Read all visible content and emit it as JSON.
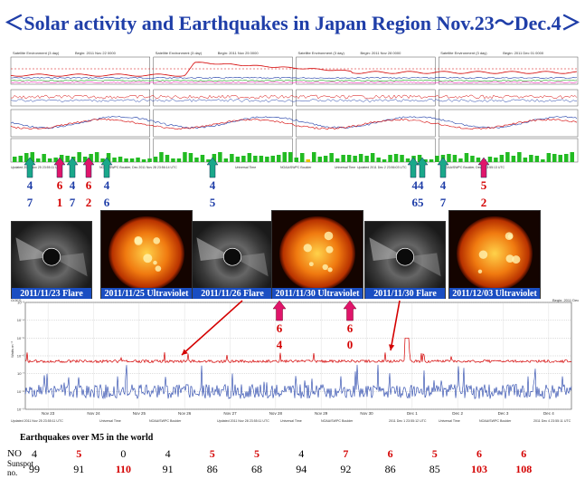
{
  "title": "＜Solar activity and Earthquakes  in Japan Region Nov.23～Dec.4＞",
  "top_chart": {
    "panel_titles": [
      "Satellite Environment (3 day)",
      "Satellite Environment (3 day)",
      "Satellite Environment (3 day)",
      "Satellite Environment (3 day)"
    ],
    "panel_begin": [
      "Begin: 2011 Nov 22 0000",
      "Begin: 2011 Nov 25 0000",
      "Begin: 2011 Nov 28 0000",
      "Begin: 2011 Dec 01 0000"
    ],
    "updated": [
      "Updated 2011 Nov 25 23:55:11 UTC",
      "NOAA/SWPC Boulder, Dec 2011 Nov 28 23:56:14 UTC",
      "Universal Time",
      "NOAA/SWPC Boulder",
      "Universal Time",
      "Updated 2011 Dec 2 23:56:03 UTC",
      "NOAA/SWPC Boulder, Dec 4 23:55:13 UTC"
    ]
  },
  "markers": {
    "items": [
      {
        "top": "4",
        "bottom": "7",
        "top_color": "blue",
        "bottom_color": "blue"
      },
      {
        "top": "6",
        "bottom": "1",
        "top_color": "red",
        "bottom_color": "red"
      },
      {
        "top": "4",
        "bottom": "7",
        "top_color": "blue",
        "bottom_color": "blue"
      },
      {
        "top": "6",
        "bottom": "2",
        "top_color": "red",
        "bottom_color": "red"
      },
      {
        "top": "4",
        "bottom": "6",
        "top_color": "blue",
        "bottom_color": "blue"
      },
      {
        "top": "4",
        "bottom": "5",
        "top_color": "blue",
        "bottom_color": "blue"
      },
      {
        "top": "44",
        "bottom": "65",
        "top_color": "blue",
        "bottom_color": "blue"
      },
      {
        "top": "4",
        "bottom": "7",
        "top_color": "blue",
        "bottom_color": "blue"
      },
      {
        "top": "5",
        "bottom": "2",
        "top_color": "red",
        "bottom_color": "red"
      }
    ],
    "mid": [
      {
        "top": "6",
        "bottom": "4"
      },
      {
        "top": "6",
        "bottom": "0"
      }
    ]
  },
  "images": [
    {
      "caption": "2011/11/23 Flare",
      "kind": "coronagraph"
    },
    {
      "caption": "2011/11/25 Ultraviolet",
      "kind": "sun"
    },
    {
      "caption": "2011/11/26 Flare",
      "kind": "coronagraph"
    },
    {
      "caption": "2011/11/30 Ultraviolet",
      "kind": "sun"
    },
    {
      "caption": "2011/11/30 Flare",
      "kind": "coronagraph"
    },
    {
      "caption": "2011/12/03 Ultraviolet",
      "kind": "sun"
    }
  ],
  "lower_chart": {
    "title": "GOES",
    "begin": "Begin:  2011 Dec 2",
    "ylabel": "Watts m⁻²",
    "x_ticks": [
      "Nov 23",
      "Nov 24",
      "Nov 25",
      "Nov 26",
      "Nov 27",
      "Nov 28",
      "Nov 29",
      "Nov 30",
      "Dec 1",
      "Dec 2",
      "Dec 3",
      "Dec 4"
    ],
    "y_ticks": [
      "10⁻³",
      "10⁻⁴",
      "10⁻⁵",
      "10⁻⁶",
      "10⁻⁷",
      "10⁻⁸",
      "10⁻⁹"
    ],
    "footer": [
      "Updated 2011 Nov 25 23:55:11 UTC",
      "Universal Time",
      "NOAA/SWPC Boulder",
      "Updated 2011 Nov 28 23:55:11 UTC",
      "Universal Time",
      "NOAA/SWPC Boulder",
      "2011 Dec 1 23:55:12 UTC",
      "Universal Time",
      "NOAA/SWPC Boulder",
      "2011 Dec 4 23:55:11 UTC"
    ]
  },
  "table": {
    "caption": "Earthquakes  over  M5 in the world",
    "no_label": "NO",
    "sunspot_label": "Sunspot no.",
    "columns": [
      {
        "no": "4",
        "sunspot": "99",
        "no_red": false,
        "sun_red": false
      },
      {
        "no": "5",
        "sunspot": "91",
        "no_red": true,
        "sun_red": false
      },
      {
        "no": "0",
        "sunspot": "110",
        "no_red": false,
        "sun_red": true
      },
      {
        "no": "4",
        "sunspot": "91",
        "no_red": false,
        "sun_red": false
      },
      {
        "no": "5",
        "sunspot": "86",
        "no_red": true,
        "sun_red": false
      },
      {
        "no": "5",
        "sunspot": "68",
        "no_red": true,
        "sun_red": false
      },
      {
        "no": "4",
        "sunspot": "94",
        "no_red": false,
        "sun_red": false
      },
      {
        "no": "7",
        "sunspot": "92",
        "no_red": true,
        "sun_red": false
      },
      {
        "no": "6",
        "sunspot": "86",
        "no_red": true,
        "sun_red": false
      },
      {
        "no": "5",
        "sunspot": "85",
        "no_red": true,
        "sun_red": false
      },
      {
        "no": "6",
        "sunspot": "103",
        "no_red": true,
        "sun_red": true
      },
      {
        "no": "6",
        "sunspot": "108",
        "no_red": true,
        "sun_red": true
      }
    ]
  },
  "colors": {
    "title": "#1f3ea8",
    "red": "#d40000",
    "blue": "#1f3ea8",
    "green": "#22bb22",
    "pink": "#e0156b",
    "teal": "#1aa88a",
    "caption_bg": "#1a4ec2"
  },
  "chart_data": {
    "type": "line",
    "title": "",
    "x": [
      "Nov 23",
      "Nov 24",
      "Nov 25",
      "Nov 26",
      "Nov 27",
      "Nov 28",
      "Nov 29",
      "Nov 30",
      "Dec 1",
      "Dec 2",
      "Dec 3",
      "Dec 4"
    ],
    "series": [
      {
        "name": "",
        "values": [
          1e-06,
          1e-06,
          1e-06,
          1e-06,
          1e-06,
          1e-06,
          1e-06,
          1e-06,
          2e-06,
          1e-06,
          1e-06,
          1e-06
        ]
      },
      {
        "name": "",
        "values": [
          1e-08,
          1e-08,
          1e-08,
          1e-08,
          1e-08,
          1e-08,
          1e-08,
          1e-08,
          1e-08,
          1e-08,
          1e-08,
          1e-08
        ]
      }
    ],
    "ylabel": "Watts m⁻²",
    "yscale": "log",
    "ylim": [
      1e-09,
      0.001
    ],
    "grid": true
  }
}
